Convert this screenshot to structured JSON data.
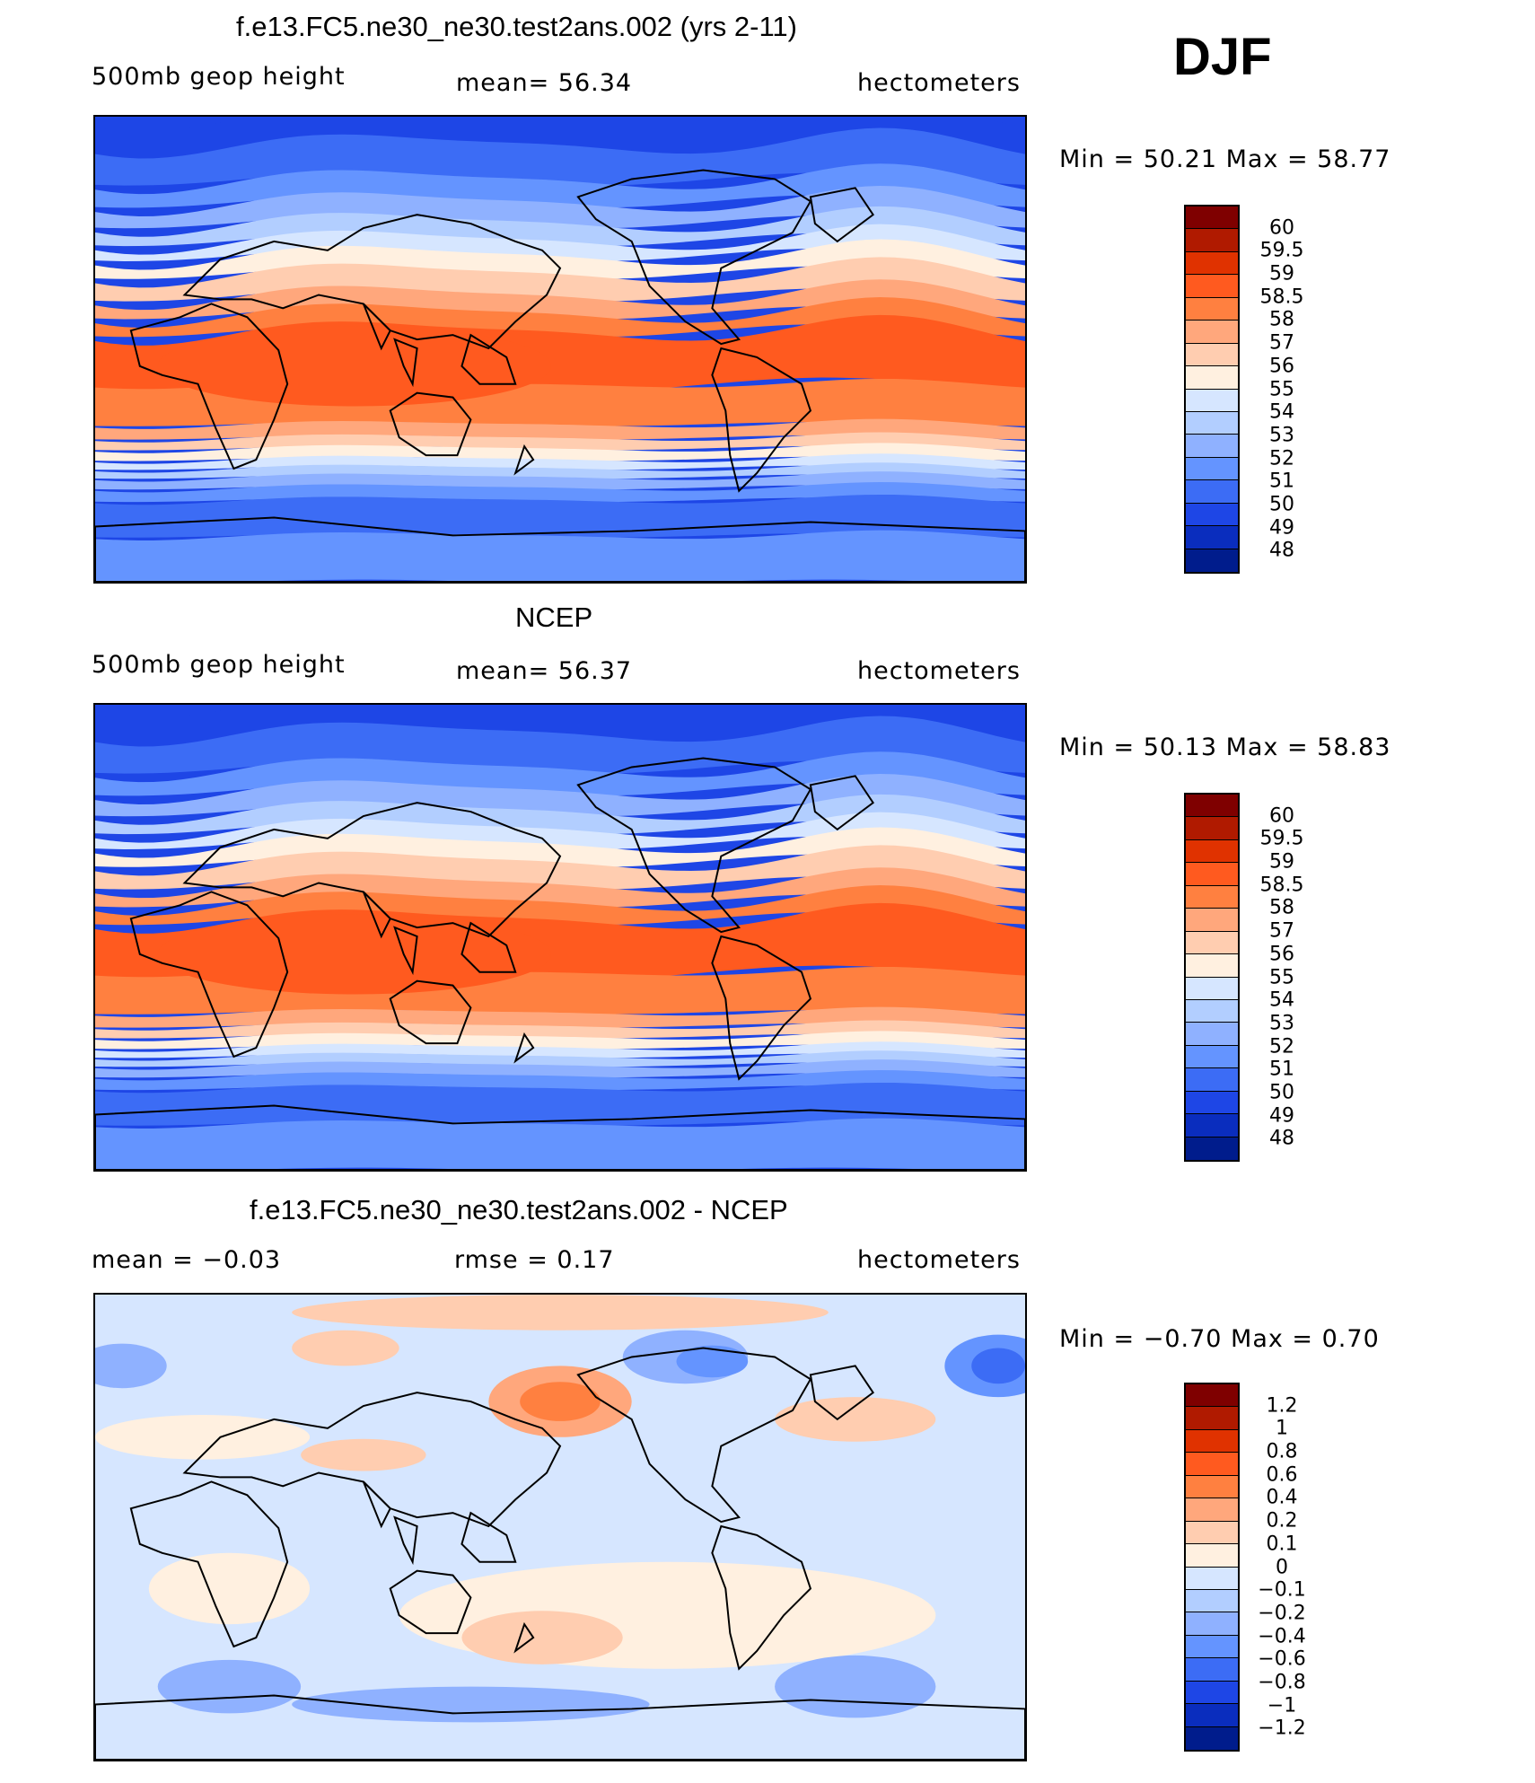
{
  "season": "DJF",
  "panels": [
    {
      "title": "f.e13.FC5.ne30_ne30.test2ans.002 (yrs 2-11)",
      "left_label": "500mb  geop  height",
      "center_label": "mean=   56.34",
      "right_label": "hectometers",
      "minmax": "Min  =    50.21  Max  =    58.77",
      "colorbar": {
        "colors": [
          "#7f0000",
          "#b01a00",
          "#e03200",
          "#ff5a1f",
          "#ff8040",
          "#ffa77c",
          "#ffcdb0",
          "#fff0e0",
          "#d6e6ff",
          "#b2ceff",
          "#8fb1ff",
          "#6494ff",
          "#3c6cf5",
          "#1e46e6",
          "#0a2dbe",
          "#001c8c"
        ],
        "labels": [
          "60",
          "59.5",
          "59",
          "58.5",
          "58",
          "57",
          "56",
          "55",
          "54",
          "53",
          "52",
          "51",
          "50",
          "49",
          "48"
        ]
      },
      "map": {
        "type": "full"
      }
    },
    {
      "title": "NCEP",
      "left_label": "500mb  geop  height",
      "center_label": "mean=   56.37",
      "right_label": "hectometers",
      "minmax": "Min  =    50.13  Max  =    58.83",
      "colorbar": {
        "colors": [
          "#7f0000",
          "#b01a00",
          "#e03200",
          "#ff5a1f",
          "#ff8040",
          "#ffa77c",
          "#ffcdb0",
          "#fff0e0",
          "#d6e6ff",
          "#b2ceff",
          "#8fb1ff",
          "#6494ff",
          "#3c6cf5",
          "#1e46e6",
          "#0a2dbe",
          "#001c8c"
        ],
        "labels": [
          "60",
          "59.5",
          "59",
          "58.5",
          "58",
          "57",
          "56",
          "55",
          "54",
          "53",
          "52",
          "51",
          "50",
          "49",
          "48"
        ]
      },
      "map": {
        "type": "full"
      }
    },
    {
      "title": "f.e13.FC5.ne30_ne30.test2ans.002 - NCEP",
      "left_label": "mean  =    −0.03",
      "center_label": "rmse  =     0.17",
      "right_label": "hectometers",
      "minmax": "Min  =   −0.70  Max  =     0.70",
      "colorbar": {
        "colors": [
          "#7f0000",
          "#b01a00",
          "#e03200",
          "#ff5a1f",
          "#ff8040",
          "#ffa77c",
          "#ffcdb0",
          "#fff0e0",
          "#d6e6ff",
          "#b2ceff",
          "#8fb1ff",
          "#6494ff",
          "#3c6cf5",
          "#1e46e6",
          "#0a2dbe",
          "#001c8c"
        ],
        "labels": [
          "1.2",
          "1",
          "0.8",
          "0.6",
          "0.4",
          "0.2",
          "0.1",
          "0",
          "−0.1",
          "−0.2",
          "−0.4",
          "−0.6",
          "−0.8",
          "−1",
          "−1.2"
        ]
      },
      "map": {
        "type": "diff"
      }
    }
  ]
}
